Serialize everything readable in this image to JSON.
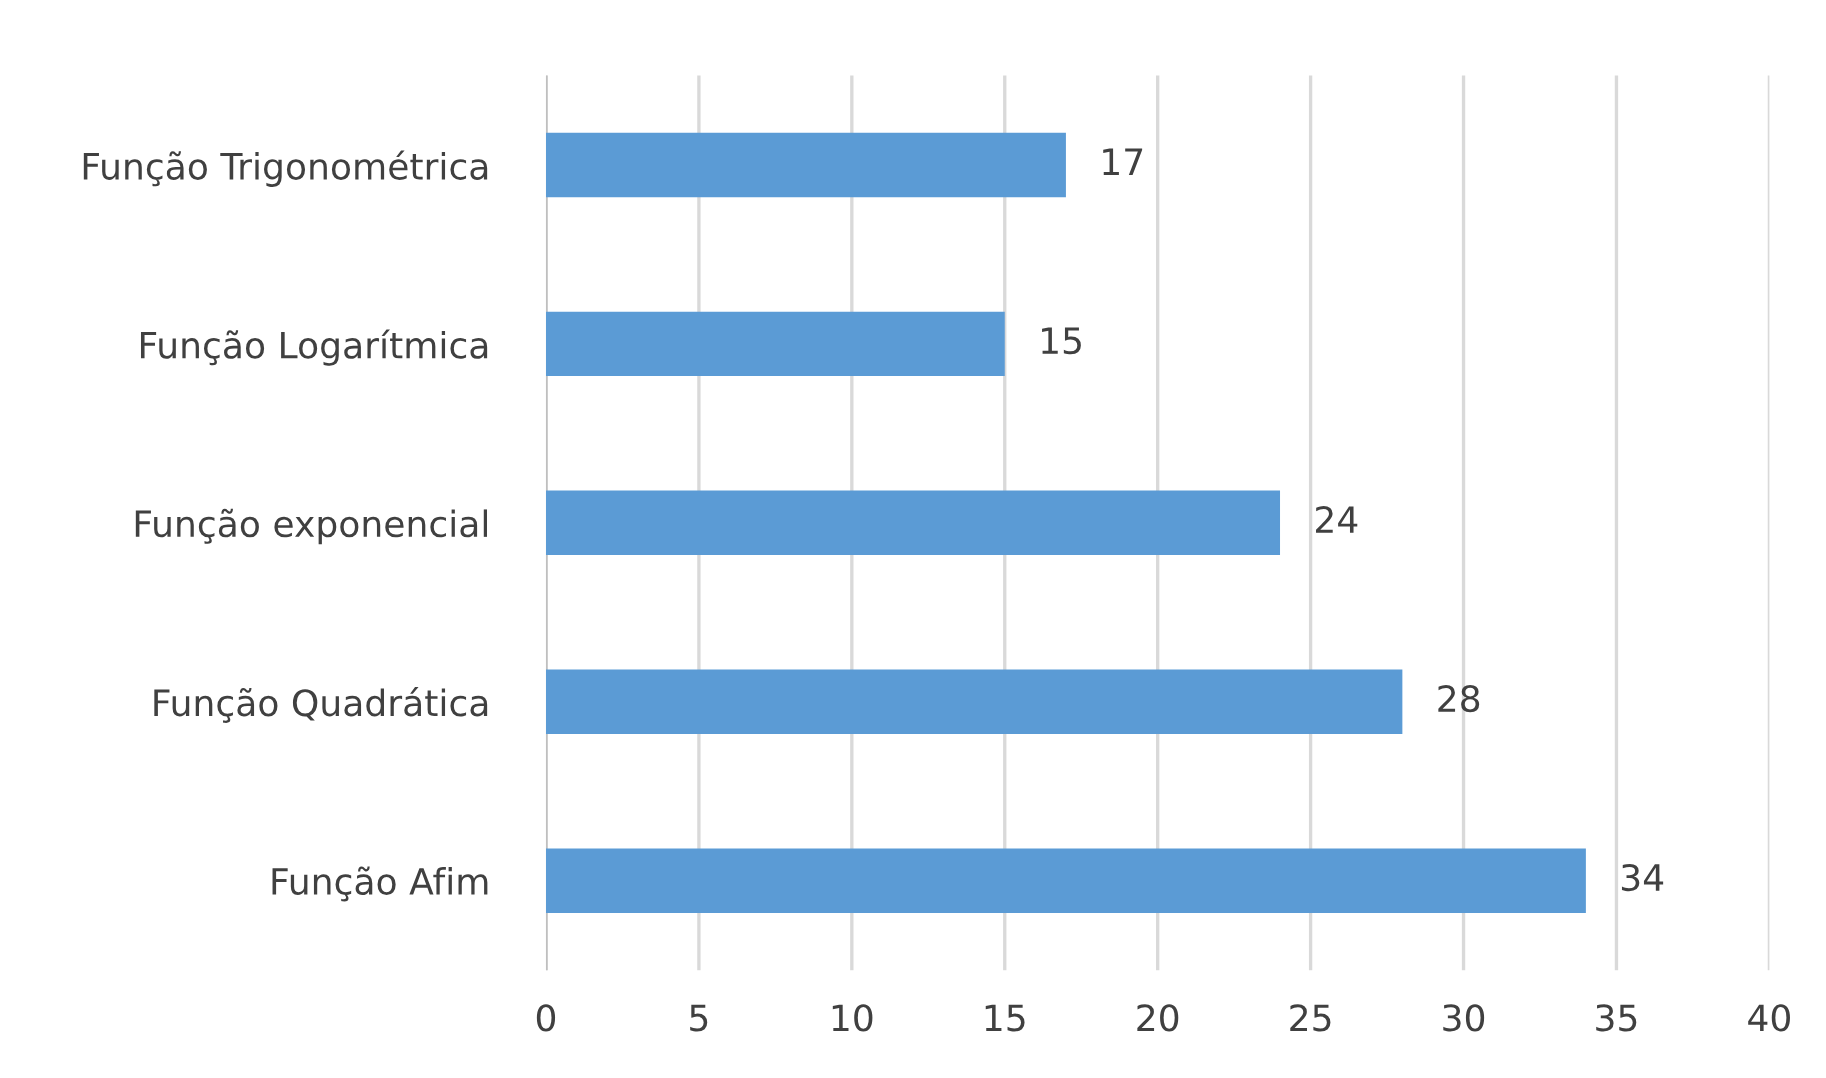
{
  "chart_data": {
    "type": "bar",
    "orientation": "horizontal",
    "categories": [
      "Função Trigonométrica",
      "Função Logarítmica",
      "Função exponencial",
      "Função Quadrática",
      "Função Afim"
    ],
    "values": [
      17,
      15,
      24,
      28,
      34
    ],
    "color": "#5b9bd5",
    "xlim": [
      0,
      40
    ],
    "xticks": [
      0,
      5,
      10,
      15,
      20,
      25,
      30,
      35,
      40
    ],
    "grid": "x",
    "data_labels": true
  }
}
